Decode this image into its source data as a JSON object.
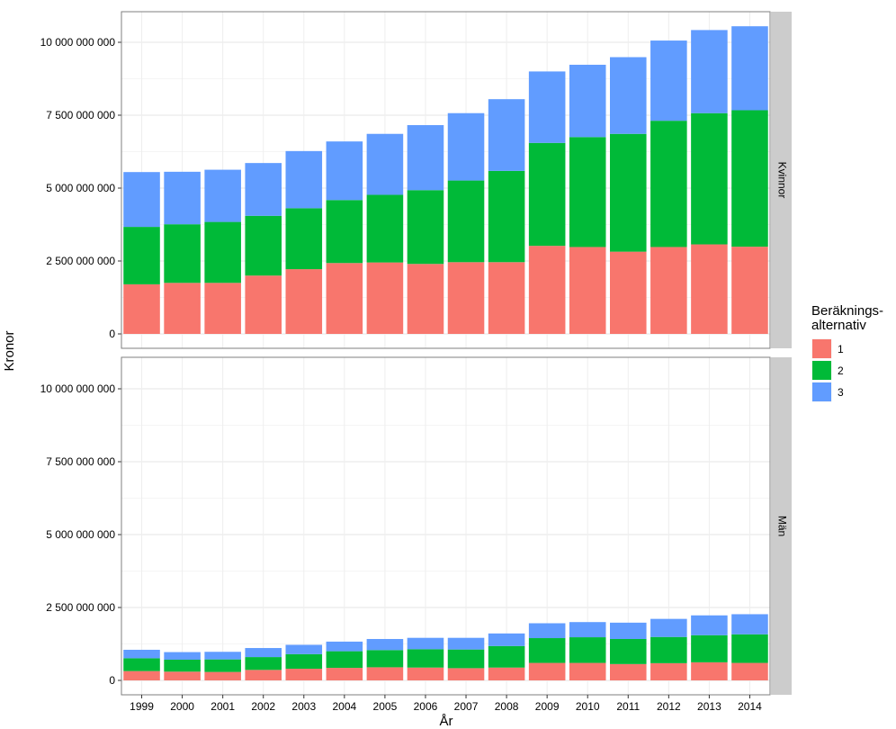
{
  "chart_data": {
    "type": "bar",
    "stacked": true,
    "xlabel": "År",
    "ylabel": "Kronor",
    "ylim": [
      0,
      11000000000
    ],
    "y_ticks": [
      0,
      2500000000,
      5000000000,
      7500000000,
      10000000000
    ],
    "y_tick_labels": [
      "0",
      "2 500 000 000",
      "5 000 000 000",
      "7 500 000 000",
      "10 000 000 000"
    ],
    "grid": true,
    "legend": {
      "title_lines": [
        "Beräknings-",
        "alternativ"
      ],
      "position": "right",
      "entries": [
        "1",
        "2",
        "3"
      ]
    },
    "categories": [
      "1999",
      "2000",
      "2001",
      "2002",
      "2003",
      "2004",
      "2005",
      "2006",
      "2007",
      "2008",
      "2009",
      "2010",
      "2011",
      "2012",
      "2013",
      "2014"
    ],
    "colors": {
      "1": "#F8766D",
      "2": "#00BA38",
      "3": "#619CFF"
    },
    "facets": [
      {
        "label": "Kvinnor",
        "series": [
          {
            "name": "1",
            "values": [
              1700000000,
              1750000000,
              1750000000,
              2000000000,
              2220000000,
              2430000000,
              2450000000,
              2400000000,
              2460000000,
              2460000000,
              3020000000,
              2980000000,
              2820000000,
              2980000000,
              3070000000,
              2990000000
            ]
          },
          {
            "name": "2",
            "values": [
              1970000000,
              2010000000,
              2090000000,
              2050000000,
              2090000000,
              2160000000,
              2320000000,
              2530000000,
              2800000000,
              3130000000,
              3530000000,
              3770000000,
              4040000000,
              4330000000,
              4500000000,
              4680000000
            ]
          },
          {
            "name": "3",
            "values": [
              1880000000,
              1800000000,
              1790000000,
              1810000000,
              1960000000,
              2010000000,
              2090000000,
              2230000000,
              2310000000,
              2460000000,
              2450000000,
              2480000000,
              2630000000,
              2750000000,
              2850000000,
              2880000000
            ]
          }
        ]
      },
      {
        "label": "Män",
        "series": [
          {
            "name": "1",
            "values": [
              320000000,
              300000000,
              290000000,
              360000000,
              400000000,
              430000000,
              450000000,
              440000000,
              420000000,
              440000000,
              600000000,
              600000000,
              560000000,
              590000000,
              620000000,
              600000000
            ]
          },
          {
            "name": "2",
            "values": [
              440000000,
              410000000,
              430000000,
              440000000,
              500000000,
              570000000,
              590000000,
              630000000,
              640000000,
              740000000,
              850000000,
              880000000,
              860000000,
              900000000,
              930000000,
              980000000
            ]
          },
          {
            "name": "3",
            "values": [
              290000000,
              260000000,
              260000000,
              310000000,
              320000000,
              330000000,
              380000000,
              390000000,
              400000000,
              430000000,
              510000000,
              520000000,
              560000000,
              620000000,
              680000000,
              690000000
            ]
          }
        ]
      }
    ]
  }
}
